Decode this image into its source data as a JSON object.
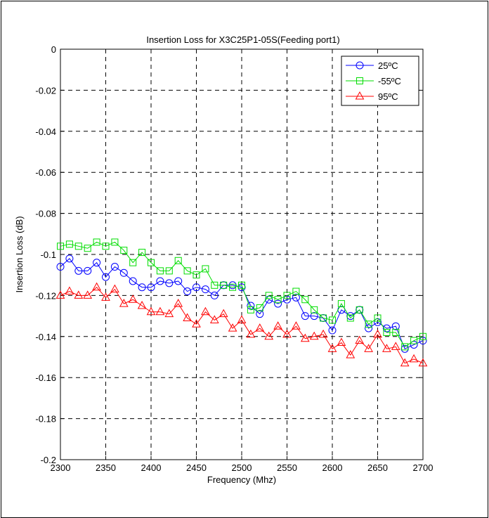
{
  "chart_data": {
    "type": "line",
    "title": "Insertion Loss for X3C25P1-05S(Feeding port1)",
    "xlabel": "Frequency (Mhz)",
    "ylabel": "Insertion Loss (dB)",
    "xlim": [
      2300,
      2700
    ],
    "ylim": [
      -0.2,
      0
    ],
    "x_ticks": [
      "2300",
      "2350",
      "2400",
      "2450",
      "2500",
      "2550",
      "2600",
      "2650",
      "2700"
    ],
    "y_ticks": [
      "0",
      "-0.02",
      "-0.04",
      "-0.06",
      "-0.08",
      "-0.1",
      "-0.12",
      "-0.14",
      "-0.16",
      "-0.18",
      "-0.2"
    ],
    "grid": true,
    "legend_position": "top-right",
    "x": [
      2300,
      2310,
      2320,
      2330,
      2340,
      2350,
      2360,
      2370,
      2380,
      2390,
      2400,
      2410,
      2420,
      2430,
      2440,
      2450,
      2460,
      2470,
      2480,
      2490,
      2500,
      2510,
      2520,
      2530,
      2540,
      2550,
      2560,
      2570,
      2580,
      2590,
      2600,
      2610,
      2620,
      2630,
      2640,
      2650,
      2660,
      2670,
      2680,
      2690,
      2700
    ],
    "series": [
      {
        "name": "25ºC",
        "color": "#0000ff",
        "marker": "circle",
        "values": [
          -0.106,
          -0.102,
          -0.108,
          -0.108,
          -0.104,
          -0.111,
          -0.106,
          -0.109,
          -0.113,
          -0.116,
          -0.116,
          -0.113,
          -0.114,
          -0.113,
          -0.118,
          -0.116,
          -0.117,
          -0.12,
          -0.115,
          -0.115,
          -0.116,
          -0.125,
          -0.129,
          -0.122,
          -0.124,
          -0.122,
          -0.121,
          -0.13,
          -0.13,
          -0.131,
          -0.137,
          -0.127,
          -0.13,
          -0.127,
          -0.136,
          -0.133,
          -0.136,
          -0.135,
          -0.146,
          -0.144,
          -0.142
        ]
      },
      {
        "name": "-55ºC",
        "color": "#00dd00",
        "marker": "square",
        "values": [
          -0.096,
          -0.095,
          -0.096,
          -0.097,
          -0.094,
          -0.096,
          -0.094,
          -0.098,
          -0.104,
          -0.099,
          -0.104,
          -0.108,
          -0.108,
          -0.103,
          -0.108,
          -0.11,
          -0.107,
          -0.115,
          -0.115,
          -0.116,
          -0.115,
          -0.127,
          -0.126,
          -0.12,
          -0.122,
          -0.12,
          -0.118,
          -0.122,
          -0.127,
          -0.131,
          -0.132,
          -0.124,
          -0.131,
          -0.127,
          -0.134,
          -0.131,
          -0.138,
          -0.138,
          -0.145,
          -0.142,
          -0.14
        ]
      },
      {
        "name": "95ºC",
        "color": "#ff0000",
        "marker": "triangle",
        "values": [
          -0.12,
          -0.118,
          -0.12,
          -0.12,
          -0.116,
          -0.121,
          -0.117,
          -0.124,
          -0.122,
          -0.125,
          -0.128,
          -0.128,
          -0.129,
          -0.124,
          -0.131,
          -0.134,
          -0.128,
          -0.132,
          -0.129,
          -0.136,
          -0.132,
          -0.139,
          -0.136,
          -0.14,
          -0.135,
          -0.139,
          -0.135,
          -0.141,
          -0.14,
          -0.139,
          -0.146,
          -0.143,
          -0.149,
          -0.142,
          -0.146,
          -0.139,
          -0.146,
          -0.145,
          -0.153,
          -0.151,
          -0.153
        ]
      }
    ]
  }
}
